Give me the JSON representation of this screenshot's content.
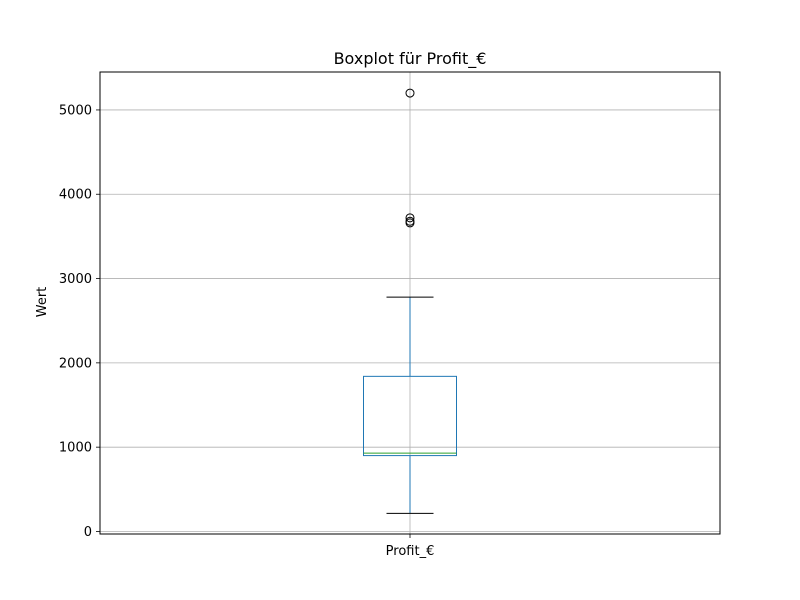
{
  "chart_data": {
    "type": "box",
    "title": "Boxplot für Profit_€",
    "xlabel": "",
    "ylabel": "Wert",
    "categories": [
      "Profit_€"
    ],
    "ylim": [
      -30,
      5450
    ],
    "yticks": [
      0,
      1000,
      2000,
      3000,
      4000,
      5000
    ],
    "grid": true,
    "box": {
      "whisker_low": 215,
      "q1": 900,
      "median": 930,
      "q3": 1840,
      "whisker_high": 2780,
      "outliers": [
        3660,
        3680,
        3720,
        5200
      ]
    },
    "colors": {
      "box": "#1f77b4",
      "median": "#2ca02c",
      "whisker_cap": "#000000",
      "grid": "#b0b0b0"
    }
  }
}
